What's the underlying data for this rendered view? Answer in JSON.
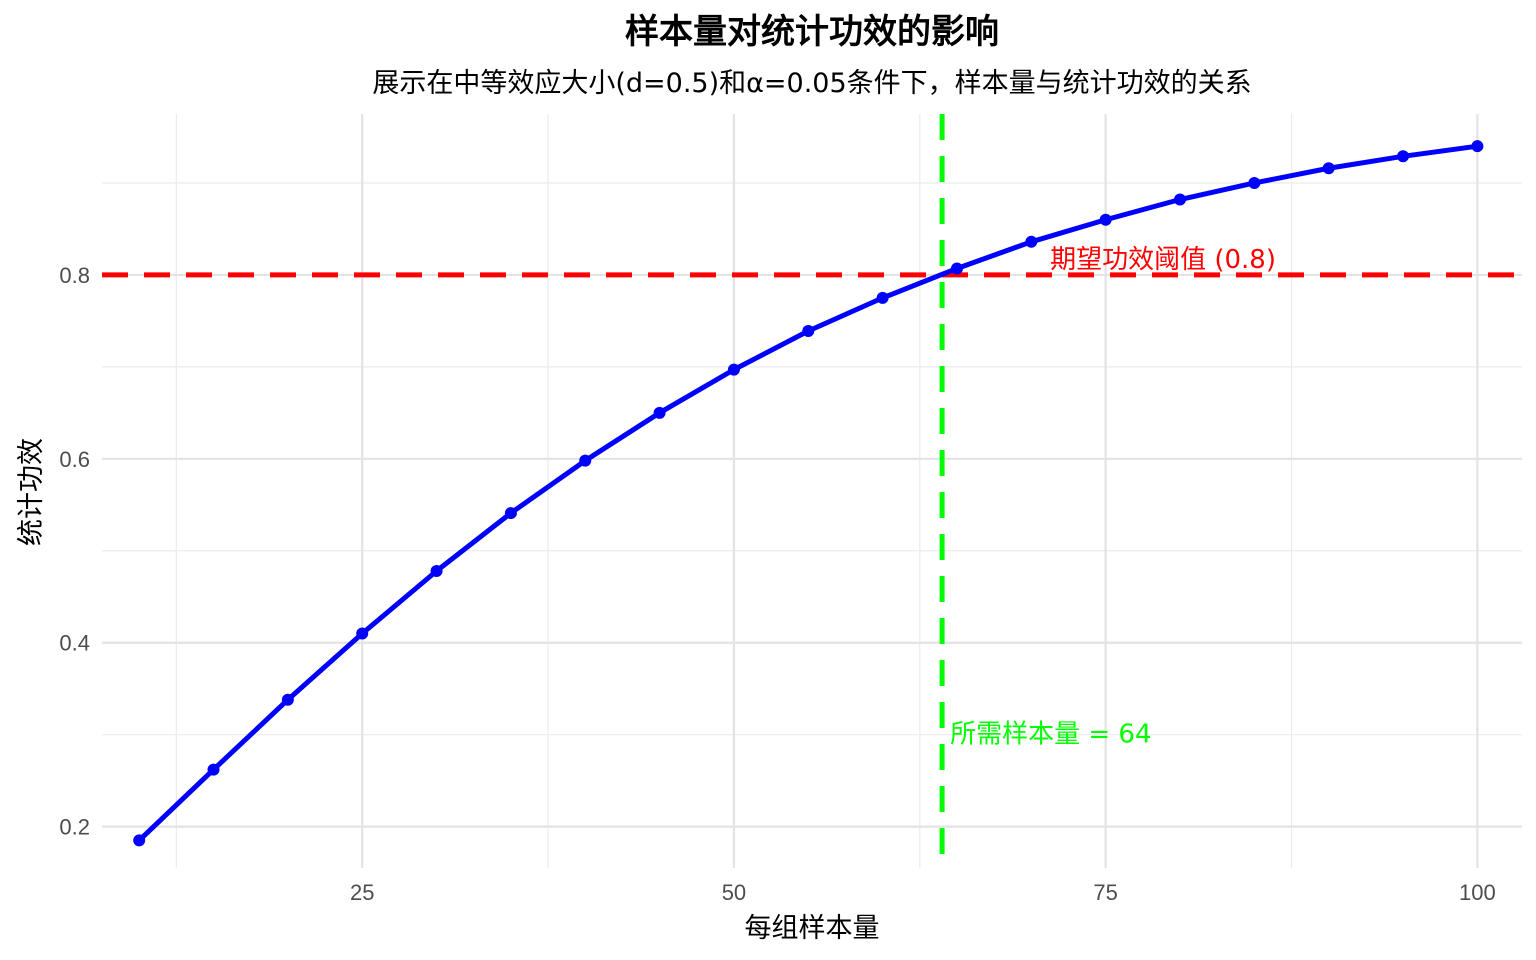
{
  "chart_data": {
    "type": "line",
    "title": "样本量对统计功效的影响",
    "subtitle": "展示在中等效应大小(d=0.5)和α=0.05条件下，样本量与统计功效的关系",
    "xlabel": "每组样本量",
    "ylabel": "统计功效",
    "xlim": [
      7.5,
      103
    ],
    "ylim": [
      0.155,
      0.975
    ],
    "x_ticks": [
      25,
      50,
      75,
      100
    ],
    "x_tick_labels": [
      "25",
      "50",
      "75",
      "100"
    ],
    "y_ticks": [
      0.2,
      0.4,
      0.6,
      0.8
    ],
    "y_tick_labels": [
      "0.2",
      "0.4",
      "0.6",
      "0.8"
    ],
    "grid": true,
    "series": [
      {
        "color": "#0000ff",
        "x": [
          10,
          15,
          20,
          25,
          30,
          35,
          40,
          45,
          50,
          55,
          60,
          65,
          70,
          75,
          80,
          85,
          90,
          95,
          100
        ],
        "y": [
          0.185,
          0.262,
          0.338,
          0.41,
          0.478,
          0.541,
          0.598,
          0.65,
          0.697,
          0.739,
          0.775,
          0.807,
          0.836,
          0.86,
          0.882,
          0.9,
          0.916,
          0.929,
          0.94
        ]
      }
    ],
    "reference_lines": [
      {
        "orientation": "horizontal",
        "value": 0.8,
        "color": "#ff0000",
        "style": "dashed",
        "label": "期望功效阈值 (0.8)"
      },
      {
        "orientation": "vertical",
        "value": 64,
        "color": "#00ff00",
        "style": "dashed",
        "label": "所需样本量 = 64"
      }
    ]
  }
}
